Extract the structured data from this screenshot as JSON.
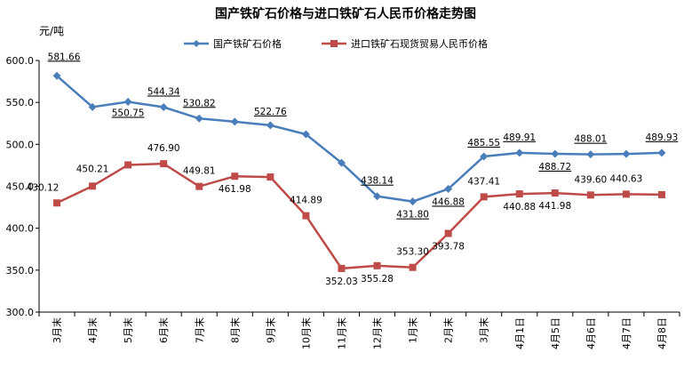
{
  "chart_data": {
    "type": "line",
    "title": "国产铁矿石价格与进口铁矿石人民币价格走势图",
    "ylabel": "元/吨",
    "ylim": [
      300,
      600
    ],
    "yticks": [
      "300.0",
      "350.0",
      "400.0",
      "450.0",
      "500.0",
      "550.0",
      "600.0"
    ],
    "legend_position": "top",
    "categories": [
      "3月末",
      "4月末",
      "5月末",
      "6月末",
      "7月末",
      "8月末",
      "9月末",
      "10月末",
      "11月末",
      "12月末",
      "1月末",
      "2月末",
      "3月末",
      "4月1日",
      "4月5日",
      "4月6日",
      "4月7日",
      "4月8日"
    ],
    "series": [
      {
        "name": "国产铁矿石价格",
        "color": "#4A7EBB",
        "marker": "diamond",
        "values": [
          581.66,
          544.5,
          550.75,
          544.34,
          530.82,
          527.0,
          522.76,
          512.0,
          478.0,
          438.14,
          431.8,
          446.88,
          485.55,
          489.91,
          488.72,
          488.01,
          488.5,
          489.93
        ],
        "labels": [
          "581.66",
          "",
          "550.75",
          "544.34",
          "530.82",
          "",
          "522.76",
          "",
          "",
          "438.14",
          "431.80",
          "446.88",
          "485.55",
          "489.91",
          "488.72",
          "488.01",
          "",
          "489.93"
        ]
      },
      {
        "name": "进口铁矿石现货贸易人民币价格",
        "color": "#BE4B48",
        "marker": "square",
        "values": [
          430.12,
          450.21,
          475.5,
          476.9,
          449.81,
          461.98,
          461.0,
          414.89,
          352.03,
          355.28,
          353.3,
          393.78,
          437.41,
          440.88,
          441.98,
          439.6,
          440.63,
          440.0
        ],
        "labels": [
          "430.12",
          "450.21",
          "",
          "476.90",
          "449.81",
          "461.98",
          "",
          "414.89",
          "352.03",
          "355.28",
          "353.30",
          "393.78",
          "437.41",
          "440.88",
          "441.98",
          "439.60",
          "440.63",
          ""
        ]
      }
    ]
  }
}
